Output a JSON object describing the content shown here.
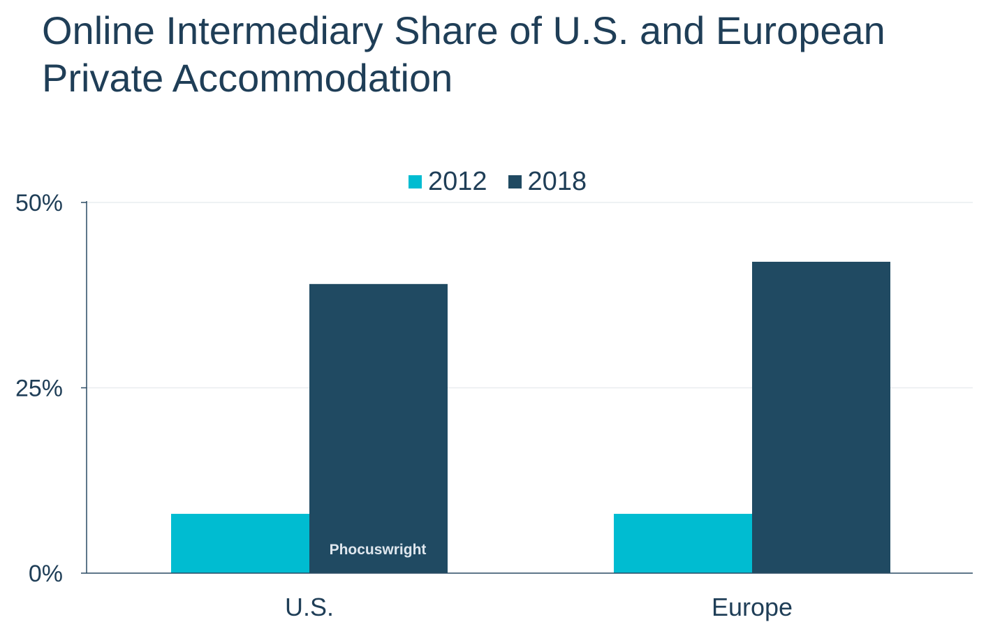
{
  "chart_data": {
    "type": "bar",
    "title": "Online Intermediary Share of U.S. and European Private Accommodation",
    "categories": [
      "U.S.",
      "Europe"
    ],
    "series": [
      {
        "name": "2012",
        "values": [
          8,
          8
        ],
        "color": "#00bcd1"
      },
      {
        "name": "2018",
        "values": [
          39,
          42
        ],
        "color": "#204a62"
      }
    ],
    "yticks": [
      0,
      25,
      50
    ],
    "ytick_labels": [
      "0%",
      "25%",
      "50%"
    ],
    "ylim": [
      0,
      50
    ],
    "xlabel": "",
    "ylabel": "",
    "legend_position": "top-center",
    "grid": true
  },
  "watermark": "Phocuswright"
}
